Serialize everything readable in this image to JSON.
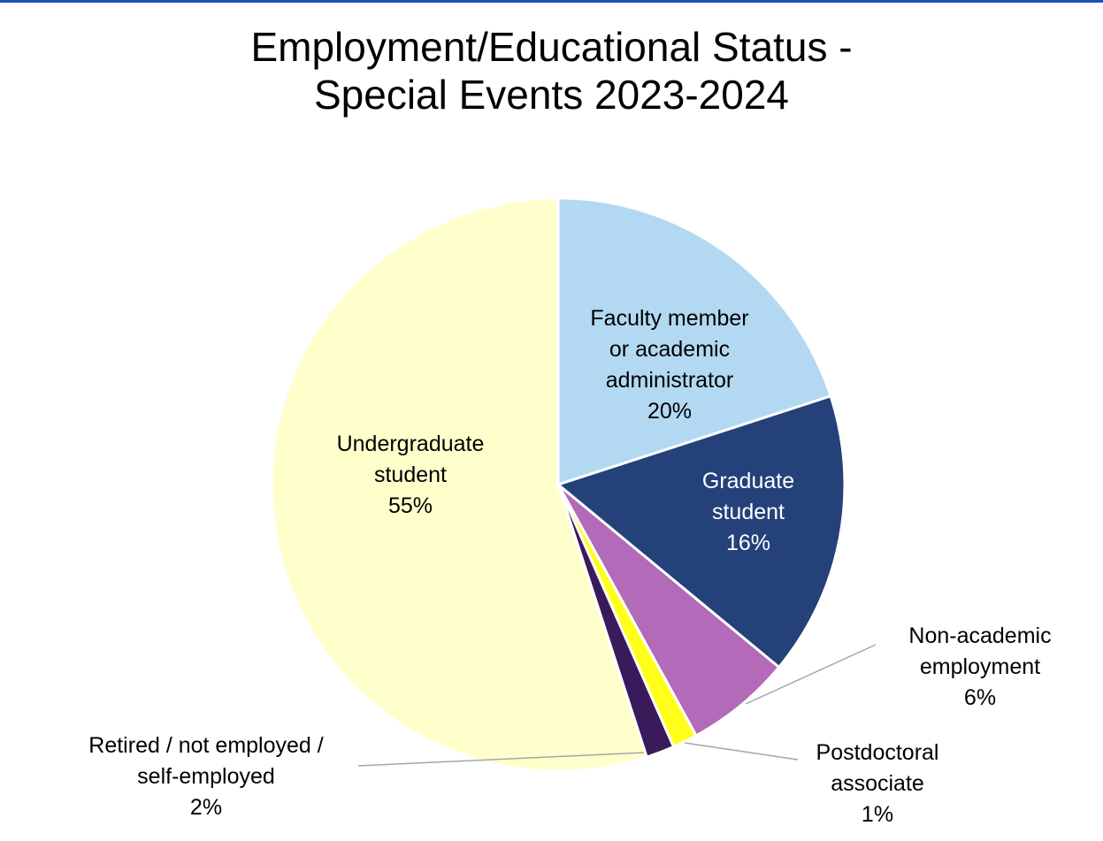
{
  "chart_data": {
    "type": "pie",
    "title_lines": [
      "Employment/Educational Status -",
      "Special Events 2023-2024"
    ],
    "slices": [
      {
        "label_lines": [
          "Faculty member",
          "or academic",
          "administrator"
        ],
        "value_label": "20%",
        "value": 20,
        "color": "#b3d9f2",
        "text_color": "#000000"
      },
      {
        "label_lines": [
          "Graduate",
          "student"
        ],
        "value_label": "16%",
        "value": 16,
        "color": "#24417a",
        "text_color": "#ffffff"
      },
      {
        "label_lines": [
          "Non-academic",
          "employment"
        ],
        "value_label": "6%",
        "value": 6,
        "color": "#b36ab8",
        "text_color": "#000000"
      },
      {
        "label_lines": [
          "Postdoctoral",
          "associate"
        ],
        "value_label": "1%",
        "value": 1.4,
        "color": "#ffff1a",
        "text_color": "#000000"
      },
      {
        "label_lines": [
          "Retired / not employed /",
          "self-employed"
        ],
        "value_label": "2%",
        "value": 1.6,
        "color": "#3b1a5c",
        "text_color": "#000000"
      },
      {
        "label_lines": [
          "Undergraduate",
          "student"
        ],
        "value_label": "55%",
        "value": 55,
        "color": "#ffffcc",
        "text_color": "#000000"
      }
    ]
  },
  "colors": {
    "top_rule": "#1f4fb5",
    "slice_border": "#ffffff",
    "leader_line": "#a6a6a6"
  }
}
